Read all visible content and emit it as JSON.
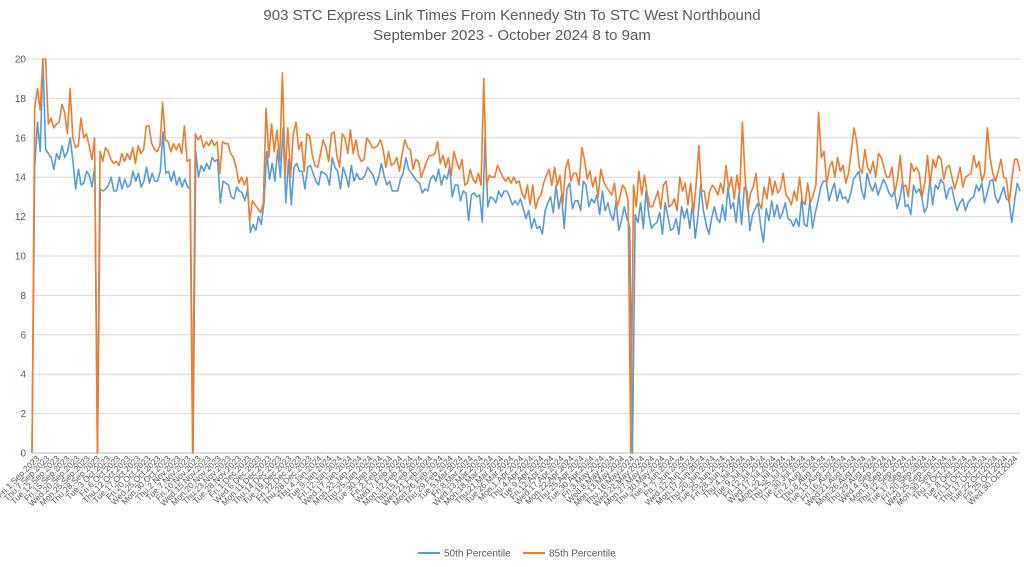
{
  "chart_data": {
    "type": "line",
    "title": "903 STC Express Link Times From Kennedy Stn To STC West Northbound",
    "subtitle": "September 2023 - October 2024 8 to 9am",
    "ylim": [
      0,
      20
    ],
    "yticks": [
      0,
      2,
      4,
      6,
      8,
      10,
      12,
      14,
      16,
      18,
      20
    ],
    "grid": true,
    "legend_position": "bottom",
    "colors": {
      "p50": "#5B9BD5",
      "p85": "#ED7D31",
      "grid": "#D9D9D9",
      "axis": "#BFBFBF"
    },
    "x_tick_labels": [
      "Fri.1.Sep.2023",
      "Thu.7.Sep.2023",
      "Tue.12.Sep.2023",
      "Fri.15.Sep.2023",
      "Wed.20.Sep.2023",
      "Mon.25.Sep.2023",
      "Thu.28.Sep.2023",
      "Tue.3.Oct.2023",
      "Fri.6.Oct.2023",
      "Thu.12.Oct.2023",
      "Tue.17.Oct.2023",
      "Fri.20.Oct.2023",
      "Wed.25.Oct.2023",
      "Mon.30.Oct.2023",
      "Thu.2.Nov.2023",
      "Tue.7.Nov.2023",
      "Fri.10.Nov.2023",
      "Wed.15.Nov.2023",
      "Mon.20.Nov.2023",
      "Thu.23.Nov.2023",
      "Tue.28.Nov.2023",
      "Fri.1.Dec.2023",
      "Wed.6.Dec.2023",
      "Mon.11.Dec.2023",
      "Thu.14.Dec.2023",
      "Tue.19.Dec.2023",
      "Fri.22.Dec.2023",
      "Thu.28.Dec.2023",
      "Thu.4.Jan.2024",
      "Tue.9.Jan.2024",
      "Fri.12.Jan.2024",
      "Wed.17.Jan.2024",
      "Mon.22.Jan.2024",
      "Thu.25.Jan.2024",
      "Tue.30.Jan.2024",
      "Fri.2.Feb.2024",
      "Wed.7.Feb.2024",
      "Mon.12.Feb.2024",
      "Thu.15.Feb.2024",
      "Wed.21.Feb.2024",
      "Mon.26.Feb.2024",
      "Thu.29.Feb.2024",
      "Tue.5.Mar.2024",
      "Fri.8.Mar.2024",
      "Wed.13.Mar.2024",
      "Mon.18.Mar.2024",
      "Thu.21.Mar.2024",
      "Tue.26.Mar.2024",
      "Mon.1.Apr.2024",
      "Thu.4.Apr.2024",
      "Tue.9.Apr.2024",
      "Fri.12.Apr.2024",
      "Wed.17.Apr.2024",
      "Mon.22.Apr.2024",
      "Thu.25.Apr.2024",
      "Tue.30.Apr.2024",
      "Fri.3.May.2024",
      "Wed.8.May.2024",
      "Mon.13.May.2024",
      "Thu.16.May.2024",
      "Wed.22.May.2024",
      "Mon.27.May.2024",
      "Thu.30.May.2024",
      "Tue.4.Jun.2024",
      "Fri.7.Jun.2024",
      "Wed.12.Jun.2024",
      "Mon.17.Jun.2024",
      "Thu.20.Jun.2024",
      "Tue.25.Jun.2024",
      "Fri.28.Jun.2024",
      "Thu.4.Jul.2024",
      "Tue.9.Jul.2024",
      "Fri.12.Jul.2024",
      "Wed.17.Jul.2024",
      "Mon.22.Jul.2024",
      "Thu.25.Jul.2024",
      "Tue.30.Jul.2024",
      "Fri.2.Aug.2024",
      "Thu.8.Aug.2024",
      "Tue.13.Aug.2024",
      "Fri.16.Aug.2024",
      "Wed.21.Aug.2024",
      "Mon.26.Aug.2024",
      "Thu.29.Aug.2024",
      "Wed.4.Sep.2024",
      "Mon.9.Sep.2024",
      "Thu.12.Sep.2024",
      "Tue.17.Sep.2024",
      "Fri.20.Sep.2024",
      "Wed.25.Sep.2024",
      "Mon.30.Sep.2024",
      "Thu.3.Oct.2024",
      "Tue.8.Oct.2024",
      "Fri.11.Oct.2024",
      "Thu.17.Oct.2024",
      "Tue.22.Oct.2024",
      "Fri.25.Oct.2024",
      "Wed.30.Oct.2024"
    ],
    "series": [
      {
        "name": "50th Percentile",
        "values": [
          0,
          14.5,
          16.8,
          15.3,
          20,
          15.4,
          15.2,
          15.0,
          14.4,
          15.2,
          14.9,
          15.6,
          15.0,
          15.3,
          16.0,
          14.8,
          13.4,
          14.4,
          13.6,
          13.7,
          14.3,
          14.1,
          13.5,
          14.6,
          0,
          13.4,
          13.3,
          13.4,
          13.6,
          14.0,
          13.3,
          13.3,
          14.0,
          13.4,
          13.9,
          13.5,
          13.6,
          14.3,
          13.8,
          14.2,
          13.5,
          13.8,
          14.5,
          13.7,
          14.2,
          13.8,
          13.8,
          14.3,
          16.3,
          14.2,
          14.3,
          13.8,
          14.3,
          13.6,
          14.0,
          13.5,
          13.9,
          13.5,
          13.4,
          0,
          15.3,
          14.0,
          14.6,
          14.3,
          14.7,
          14.4,
          15.0,
          14.8,
          14.9,
          12.7,
          13.8,
          13.7,
          13.6,
          13.0,
          12.9,
          13.5,
          13.3,
          13.2,
          12.8,
          13.4,
          11.2,
          11.6,
          11.3,
          12.0,
          11.6,
          12.7,
          15.3,
          13.9,
          14.7,
          13.8,
          15.4,
          14.0,
          16.5,
          12.7,
          14.9,
          12.6,
          14.5,
          14.7,
          14.3,
          14.3,
          13.4,
          14.5,
          14.6,
          14.2,
          13.8,
          13.6,
          14.3,
          14.2,
          14.1,
          13.6,
          15.0,
          14.5,
          14.3,
          13.4,
          14.5,
          14.1,
          13.5,
          14.6,
          13.8,
          14.2,
          13.9,
          13.9,
          14.1,
          14.5,
          14.3,
          14.1,
          13.6,
          14.0,
          14.7,
          14.1,
          13.6,
          13.8,
          13.3,
          13.3,
          13.3,
          13.9,
          14.2,
          15.0,
          14.4,
          14.2,
          14.0,
          13.8,
          13.7,
          13.2,
          13.4,
          13.3,
          13.9,
          14.1,
          13.8,
          14.4,
          13.6,
          14.1,
          13.9,
          14.5,
          13.0,
          13.6,
          13.6,
          12.8,
          13.3,
          13.2,
          11.8,
          13.1,
          13.2,
          13.0,
          13.1,
          11.7,
          16.0,
          12.5,
          13.0,
          12.9,
          12.7,
          13.3,
          13.0,
          13.3,
          13.3,
          13.0,
          12.6,
          12.8,
          12.6,
          12.9,
          12.4,
          11.9,
          12.3,
          11.4,
          11.9,
          11.4,
          11.5,
          11.1,
          12.3,
          12.7,
          13.0,
          12.2,
          13.6,
          12.4,
          13.1,
          11.4,
          13.4,
          13.7,
          12.4,
          12.8,
          12.8,
          12.3,
          13.8,
          13.6,
          12.5,
          12.9,
          12.7,
          13.1,
          12.1,
          13.3,
          12.3,
          12.7,
          12.1,
          11.8,
          12.8,
          11.3,
          11.8,
          12.5,
          11.9,
          11.5,
          0,
          12.1,
          11.7,
          12.7,
          11.4,
          13.3,
          12.1,
          11.4,
          11.6,
          11.7,
          12.2,
          11.1,
          12.7,
          12.0,
          11.3,
          11.4,
          11.9,
          11.1,
          12.5,
          11.9,
          12.4,
          11.4,
          12.7,
          10.9,
          12.0,
          13.6,
          12.3,
          11.6,
          11.1,
          11.9,
          12.5,
          11.9,
          11.7,
          12.6,
          11.8,
          13.5,
          12.4,
          12.7,
          11.7,
          13.2,
          11.6,
          13.5,
          13.3,
          11.3,
          12.1,
          12.4,
          12.7,
          11.5,
          10.7,
          12.4,
          11.8,
          12.8,
          12.0,
          12.6,
          11.9,
          12.2,
          12.7,
          11.9,
          11.8,
          11.5,
          11.9,
          11.5,
          12.9,
          11.6,
          11.5,
          12.8,
          11.4,
          12.2,
          12.8,
          13.5,
          13.8,
          13.8,
          12.8,
          13.3,
          13.7,
          12.8,
          13.4,
          12.9,
          13.0,
          12.7,
          13.2,
          13.9,
          14.1,
          14.3,
          13.3,
          12.9,
          14.2,
          13.6,
          13.3,
          13.7,
          13.1,
          13.5,
          13.9,
          13.6,
          13.2,
          13.0,
          13.3,
          12.4,
          12.9,
          13.8,
          12.5,
          12.6,
          12.1,
          13.6,
          13.2,
          13.4,
          13.0,
          12.2,
          12.5,
          13.9,
          12.6,
          13.6,
          13.4,
          13.9,
          13.7,
          12.9,
          13.4,
          13.5,
          12.8,
          12.3,
          12.7,
          12.9,
          12.3,
          12.7,
          12.9,
          13.0,
          13.6,
          13.3,
          13.7,
          12.7,
          13.2,
          13.8,
          13.9,
          13.0,
          12.7,
          13.1,
          13.5,
          12.9,
          12.8,
          11.7,
          12.8,
          13.7,
          13.3
        ]
      },
      {
        "name": "85th Percentile",
        "values": [
          0,
          17.5,
          18.5,
          17.4,
          20,
          20,
          16.7,
          17.0,
          16.5,
          16.7,
          16.8,
          17.7,
          17.3,
          16.2,
          18.5,
          16.0,
          15.5,
          15.6,
          17.0,
          16.0,
          16.2,
          15.6,
          14.9,
          16.0,
          0,
          15.3,
          14.8,
          15.5,
          15.3,
          14.9,
          14.7,
          14.8,
          14.6,
          15.2,
          14.8,
          15.2,
          14.9,
          15.5,
          14.7,
          15.6,
          15.2,
          15.4,
          16.6,
          16.6,
          15.7,
          15.4,
          15.3,
          15.6,
          17.8,
          15.9,
          15.8,
          15.3,
          15.7,
          15.4,
          15.7,
          15.2,
          16.6,
          14.8,
          14.9,
          0,
          16.2,
          15.9,
          16.1,
          15.5,
          15.8,
          15.6,
          15.9,
          15.6,
          15.8,
          14.2,
          15.8,
          15.7,
          15.7,
          15.2,
          15.0,
          14.5,
          13.7,
          14.0,
          13.6,
          14.0,
          11.8,
          12.8,
          12.6,
          12.4,
          12.2,
          12.7,
          17.5,
          15.0,
          16.7,
          15.3,
          16.4,
          14.8,
          19.3,
          14.1,
          16.5,
          14.0,
          16.2,
          16.8,
          15.4,
          15.8,
          14.3,
          16.2,
          16.1,
          15.1,
          14.6,
          14.5,
          15.2,
          15.9,
          15.5,
          14.8,
          16.2,
          16.3,
          15.1,
          14.5,
          16.2,
          16.0,
          15.2,
          16.4,
          15.2,
          15.9,
          15.1,
          14.8,
          14.9,
          16.0,
          15.8,
          15.5,
          15.5,
          15.6,
          15.9,
          15.4,
          14.5,
          15.3,
          14.6,
          14.7,
          15.0,
          14.3,
          15.2,
          15.9,
          15.5,
          15.4,
          14.4,
          14.9,
          14.8,
          14.0,
          14.4,
          14.8,
          15.1,
          15.1,
          15.2,
          15.8,
          14.7,
          15.1,
          14.5,
          15.0,
          14.1,
          15.3,
          14.8,
          14.4,
          14.9,
          13.6,
          13.7,
          14.4,
          13.9,
          13.7,
          14.2,
          13.6,
          19.0,
          13.6,
          14.1,
          14.0,
          14.0,
          14.6,
          14.3,
          14.0,
          13.8,
          14.0,
          13.7,
          14.0,
          13.7,
          13.8,
          13.2,
          12.9,
          13.6,
          12.6,
          13.6,
          12.4,
          12.9,
          13.1,
          13.7,
          14.1,
          14.4,
          13.6,
          14.5,
          13.6,
          14.1,
          12.6,
          14.4,
          14.9,
          13.8,
          14.2,
          14.2,
          13.6,
          15.5,
          14.9,
          13.9,
          14.3,
          13.5,
          14.0,
          13.0,
          14.4,
          13.8,
          13.5,
          13.3,
          13.1,
          13.7,
          12.5,
          13.0,
          13.6,
          13.4,
          12.8,
          0,
          13.6,
          12.5,
          14.3,
          13.1,
          14.1,
          13.2,
          12.5,
          12.5,
          12.9,
          13.3,
          12.4,
          13.6,
          13.8,
          12.5,
          12.6,
          12.9,
          12.3,
          14.0,
          13.3,
          13.7,
          12.6,
          13.7,
          12.2,
          13.6,
          15.6,
          13.3,
          13.3,
          12.4,
          13.3,
          13.6,
          13.4,
          13.1,
          13.7,
          13.2,
          14.6,
          13.4,
          14.0,
          12.9,
          14.1,
          13.2,
          16.8,
          14.0,
          12.3,
          13.2,
          13.5,
          14.2,
          12.7,
          12.4,
          13.5,
          12.9,
          14.0,
          13.1,
          13.8,
          13.2,
          13.4,
          14.2,
          13.1,
          12.9,
          12.6,
          13.3,
          12.8,
          14.0,
          12.8,
          12.6,
          13.7,
          12.7,
          13.1,
          13.6,
          17.3,
          15.0,
          15.3,
          13.7,
          14.5,
          14.8,
          14.0,
          15.0,
          14.3,
          14.6,
          13.7,
          14.2,
          15.3,
          16.5,
          15.8,
          14.5,
          14.2,
          15.4,
          14.5,
          14.2,
          14.8,
          14.0,
          15.2,
          15.0,
          14.5,
          14.0,
          14.0,
          14.5,
          13.2,
          13.9,
          15.1,
          13.5,
          13.6,
          13.0,
          14.7,
          14.3,
          14.5,
          14.2,
          13.0,
          13.7,
          15.1,
          13.6,
          14.9,
          14.5,
          15.1,
          14.9,
          13.9,
          14.5,
          14.6,
          14.0,
          13.4,
          13.9,
          14.5,
          13.5,
          14.0,
          14.1,
          14.2,
          15.1,
          14.5,
          14.8,
          13.8,
          14.2,
          16.5,
          15.0,
          14.2,
          13.8,
          14.3,
          14.9,
          14.0,
          13.9,
          12.7,
          13.9,
          14.9,
          14.9,
          14.3
        ]
      }
    ]
  }
}
